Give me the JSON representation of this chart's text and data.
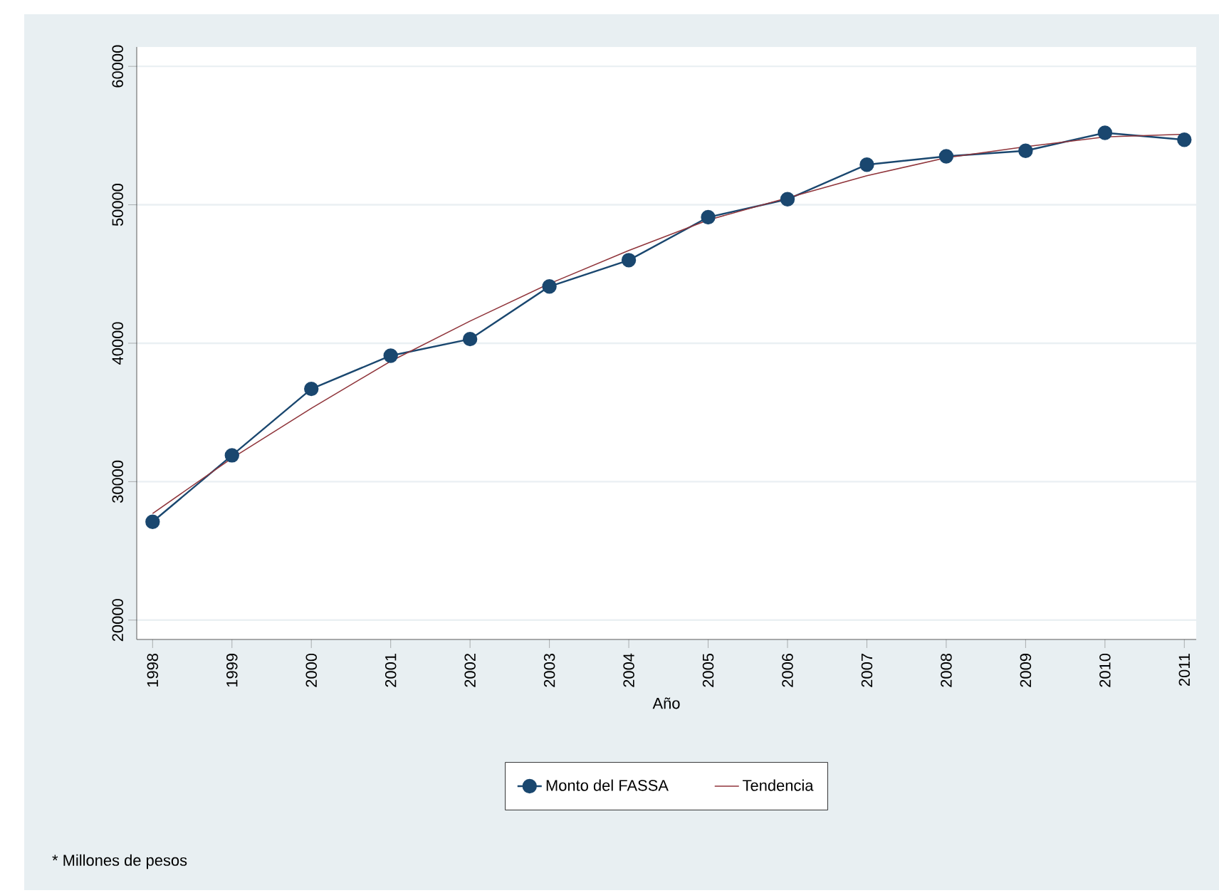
{
  "chart_data": {
    "type": "line",
    "xlabel": "Año",
    "categories": [
      "1998",
      "1999",
      "2000",
      "2001",
      "2002",
      "2003",
      "2004",
      "2005",
      "2006",
      "2007",
      "2008",
      "2009",
      "2010",
      "2011"
    ],
    "series": [
      {
        "name": "Monto del FASSA",
        "color": "#1a476f",
        "marker": "circle",
        "values": [
          27100,
          31900,
          36700,
          39100,
          40300,
          44100,
          46000,
          49100,
          50400,
          52900,
          53500,
          53900,
          55200,
          54700
        ]
      },
      {
        "name": "Tendencia",
        "color": "#90353b",
        "marker": "none",
        "values": [
          27700,
          31700,
          35300,
          38700,
          41600,
          44300,
          46700,
          48900,
          50500,
          52100,
          53400,
          54200,
          54900,
          55100
        ]
      }
    ],
    "ylim": [
      18600,
      61400
    ],
    "yticks": [
      20000,
      30000,
      40000,
      50000,
      60000
    ],
    "grid": "y",
    "legend": "bottom",
    "line_style": "solid",
    "annotations": [
      "* Millones de pesos"
    ]
  }
}
